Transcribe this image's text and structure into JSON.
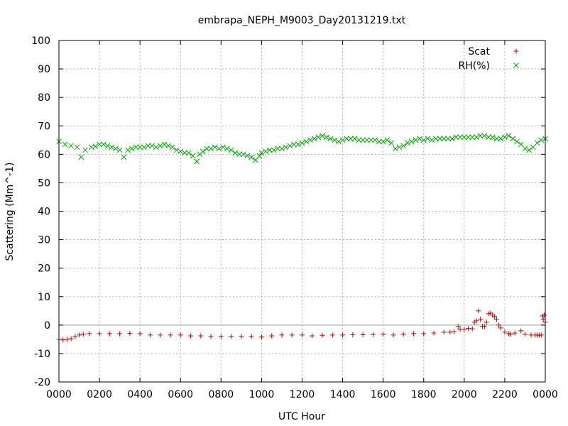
{
  "chart_data": {
    "type": "scatter",
    "title": "embrapa_NEPH_M9003_Day20131219.txt",
    "xlabel": "UTC Hour",
    "ylabel": "Scattering (Mm^-1)",
    "xlim": [
      0,
      24
    ],
    "ylim": [
      -20,
      100
    ],
    "yticks": [
      -20,
      -10,
      0,
      10,
      20,
      30,
      40,
      50,
      60,
      70,
      80,
      90,
      100
    ],
    "xticks": [
      0,
      2,
      4,
      6,
      8,
      10,
      12,
      14,
      16,
      18,
      20,
      22,
      24
    ],
    "xtick_labels": [
      "0000",
      "0200",
      "0400",
      "0600",
      "0800",
      "1000",
      "1200",
      "1400",
      "1600",
      "1800",
      "2000",
      "2200",
      "0000"
    ],
    "grid": true,
    "zero_line": true,
    "legend_position": "top-right",
    "series": [
      {
        "name": "Scat",
        "marker": "+",
        "color": "#cc0000",
        "x": [
          0.0,
          0.2,
          0.4,
          0.6,
          0.8,
          1.0,
          1.2,
          1.5,
          2.0,
          2.5,
          3.0,
          3.5,
          4.0,
          4.5,
          5.0,
          5.5,
          6.0,
          6.5,
          7.0,
          7.5,
          8.0,
          8.5,
          9.0,
          9.5,
          10.0,
          10.5,
          11.0,
          11.5,
          12.0,
          12.5,
          13.0,
          13.5,
          14.0,
          14.5,
          15.0,
          15.5,
          16.0,
          16.5,
          17.0,
          17.5,
          18.0,
          18.5,
          19.0,
          19.3,
          19.5,
          19.7,
          19.8,
          20.0,
          20.2,
          20.4,
          20.5,
          20.6,
          20.7,
          20.8,
          20.9,
          21.0,
          21.1,
          21.2,
          21.3,
          21.4,
          21.5,
          21.6,
          21.7,
          21.8,
          22.0,
          22.2,
          22.3,
          22.5,
          22.8,
          23.0,
          23.3,
          23.5,
          23.6,
          23.7,
          23.8,
          23.9
        ],
        "values": [
          -5.0,
          -5.2,
          -5.0,
          -4.8,
          -4.0,
          -3.5,
          -3.2,
          -3.0,
          -3.0,
          -3.0,
          -3.0,
          -2.9,
          -3.0,
          -3.5,
          -3.5,
          -3.5,
          -3.5,
          -3.8,
          -3.8,
          -4.0,
          -4.0,
          -4.0,
          -4.0,
          -4.0,
          -4.2,
          -3.8,
          -3.5,
          -3.5,
          -3.5,
          -3.8,
          -3.6,
          -3.5,
          -3.5,
          -3.4,
          -3.4,
          -3.3,
          -3.2,
          -3.5,
          -3.2,
          -3.0,
          -3.0,
          -2.8,
          -2.5,
          -2.5,
          -2.3,
          -0.5,
          -1.5,
          -1.5,
          -1.2,
          -1.3,
          1.0,
          1.5,
          5.0,
          2.0,
          -0.5,
          -0.5,
          1.0,
          4.0,
          4.2,
          3.5,
          3.0,
          2.0,
          0.0,
          -1.0,
          -2.5,
          -3.0,
          -3.2,
          -2.8,
          -2.0,
          -3.2,
          -3.5,
          -3.5,
          -3.5,
          -3.6,
          -3.5,
          2.0
        ],
        "extra_points": [
          [
            23.85,
            3.2
          ],
          [
            23.95,
            3.5
          ],
          [
            24.0,
            1.0
          ]
        ]
      },
      {
        "name": "RH(%)",
        "marker": "x",
        "color": "#00a000",
        "x": [
          0.0,
          0.3,
          0.6,
          0.9,
          1.1,
          1.3,
          1.6,
          1.8,
          2.0,
          2.2,
          2.4,
          2.6,
          2.8,
          3.0,
          3.2,
          3.4,
          3.6,
          3.8,
          4.0,
          4.2,
          4.4,
          4.6,
          4.8,
          5.0,
          5.2,
          5.4,
          5.6,
          5.8,
          6.0,
          6.2,
          6.4,
          6.6,
          6.8,
          6.95,
          7.1,
          7.3,
          7.5,
          7.7,
          7.9,
          8.1,
          8.3,
          8.5,
          8.7,
          8.9,
          9.1,
          9.3,
          9.5,
          9.7,
          9.9,
          10.0,
          10.2,
          10.4,
          10.6,
          10.8,
          11.0,
          11.2,
          11.4,
          11.6,
          11.8,
          12.0,
          12.2,
          12.4,
          12.6,
          12.8,
          13.0,
          13.2,
          13.4,
          13.6,
          13.8,
          14.0,
          14.2,
          14.4,
          14.6,
          14.8,
          15.0,
          15.2,
          15.4,
          15.6,
          15.8,
          16.0,
          16.2,
          16.4,
          16.6,
          16.8,
          17.0,
          17.2,
          17.4,
          17.6,
          17.8,
          18.0,
          18.2,
          18.4,
          18.6,
          18.8,
          19.0,
          19.2,
          19.4,
          19.6,
          19.8,
          20.0,
          20.2,
          20.4,
          20.6,
          20.8,
          21.0,
          21.2,
          21.4,
          21.6,
          21.8,
          22.0,
          22.2,
          22.4,
          22.6,
          22.8,
          23.0,
          23.2,
          23.4,
          23.6,
          23.8,
          24.0
        ],
        "values": [
          64.5,
          63.5,
          63.0,
          62.5,
          59.0,
          61.5,
          62.5,
          62.8,
          63.5,
          63.5,
          63.0,
          62.5,
          62.0,
          61.5,
          59.0,
          61.5,
          62.0,
          62.5,
          62.5,
          62.5,
          63.0,
          63.0,
          62.5,
          63.0,
          63.5,
          63.0,
          62.5,
          61.5,
          61.0,
          60.5,
          60.5,
          59.5,
          57.5,
          60.0,
          61.0,
          62.0,
          62.0,
          62.5,
          62.0,
          62.5,
          62.0,
          61.5,
          60.5,
          60.0,
          60.0,
          59.5,
          59.0,
          58.0,
          59.5,
          60.5,
          61.0,
          61.5,
          61.5,
          62.0,
          62.0,
          62.5,
          63.0,
          63.5,
          63.5,
          64.0,
          64.5,
          65.0,
          65.5,
          66.0,
          66.5,
          66.0,
          65.5,
          65.0,
          64.5,
          65.0,
          65.5,
          65.5,
          65.5,
          65.0,
          65.0,
          65.0,
          65.0,
          65.0,
          64.5,
          64.5,
          65.0,
          64.0,
          62.0,
          62.5,
          63.0,
          64.0,
          64.5,
          65.0,
          65.5,
          65.0,
          65.5,
          65.0,
          65.5,
          65.5,
          65.5,
          65.5,
          65.5,
          66.0,
          66.0,
          66.0,
          66.0,
          66.0,
          66.0,
          66.5,
          66.5,
          66.0,
          66.0,
          65.5,
          65.5,
          66.0,
          66.5,
          65.5,
          64.5,
          63.5,
          62.0,
          61.5,
          62.5,
          64.0,
          65.0,
          65.5
        ]
      }
    ]
  }
}
